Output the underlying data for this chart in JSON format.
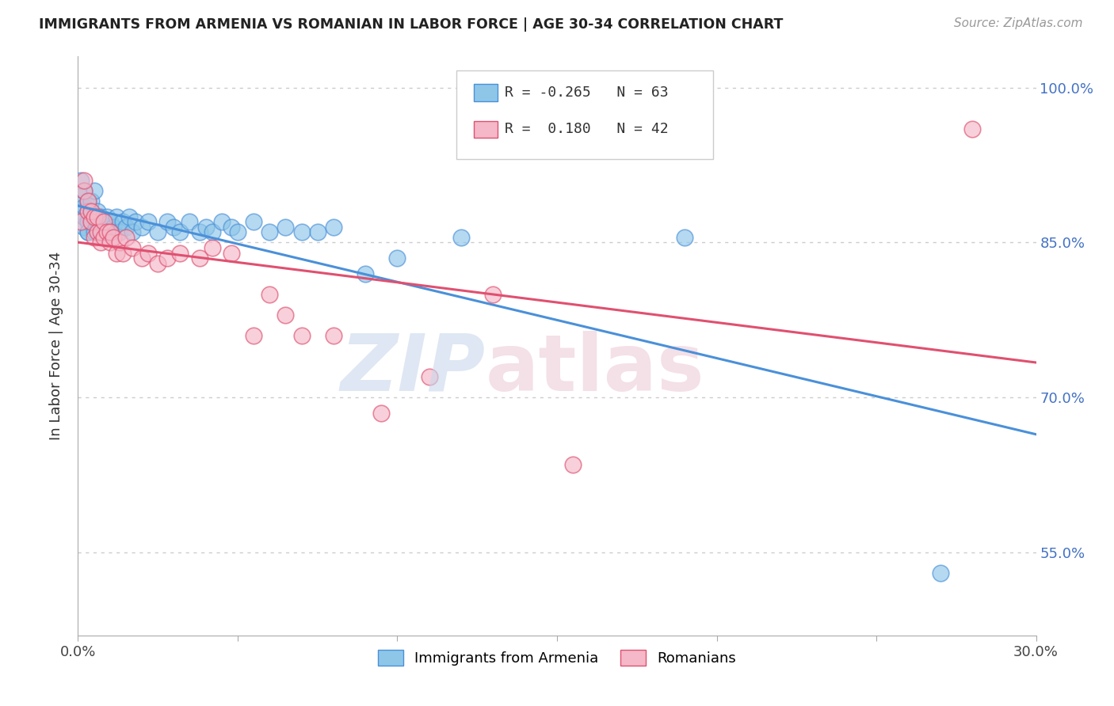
{
  "title": "IMMIGRANTS FROM ARMENIA VS ROMANIAN IN LABOR FORCE | AGE 30-34 CORRELATION CHART",
  "source": "Source: ZipAtlas.com",
  "ylabel": "In Labor Force | Age 30-34",
  "xlim": [
    0.0,
    0.3
  ],
  "ylim": [
    0.47,
    1.03
  ],
  "xticks": [
    0.0,
    0.05,
    0.1,
    0.15,
    0.2,
    0.25,
    0.3
  ],
  "xticklabels": [
    "0.0%",
    "",
    "",
    "",
    "",
    "",
    "30.0%"
  ],
  "yticks": [
    0.55,
    0.7,
    0.85,
    1.0
  ],
  "yticklabels": [
    "55.0%",
    "70.0%",
    "85.0%",
    "100.0%"
  ],
  "legend_labels": [
    "Immigrants from Armenia",
    "Romanians"
  ],
  "blue_color": "#8ec6e8",
  "pink_color": "#f4b8c8",
  "blue_line_color": "#4a90d9",
  "pink_line_color": "#e05070",
  "r_blue": -0.265,
  "n_blue": 63,
  "r_pink": 0.18,
  "n_pink": 42,
  "blue_scatter_x": [
    0.001,
    0.001,
    0.001,
    0.002,
    0.002,
    0.002,
    0.002,
    0.003,
    0.003,
    0.003,
    0.003,
    0.003,
    0.004,
    0.004,
    0.004,
    0.004,
    0.005,
    0.005,
    0.005,
    0.005,
    0.006,
    0.006,
    0.006,
    0.007,
    0.007,
    0.008,
    0.008,
    0.009,
    0.009,
    0.01,
    0.01,
    0.011,
    0.012,
    0.013,
    0.014,
    0.015,
    0.016,
    0.017,
    0.018,
    0.02,
    0.022,
    0.025,
    0.028,
    0.03,
    0.032,
    0.035,
    0.038,
    0.04,
    0.042,
    0.045,
    0.048,
    0.05,
    0.055,
    0.06,
    0.065,
    0.07,
    0.075,
    0.08,
    0.09,
    0.1,
    0.12,
    0.19,
    0.27
  ],
  "blue_scatter_y": [
    0.88,
    0.895,
    0.91,
    0.865,
    0.875,
    0.885,
    0.9,
    0.86,
    0.87,
    0.88,
    0.89,
    0.86,
    0.87,
    0.875,
    0.88,
    0.89,
    0.86,
    0.87,
    0.875,
    0.9,
    0.86,
    0.87,
    0.88,
    0.865,
    0.875,
    0.86,
    0.87,
    0.865,
    0.875,
    0.86,
    0.87,
    0.865,
    0.875,
    0.86,
    0.87,
    0.865,
    0.875,
    0.86,
    0.87,
    0.865,
    0.87,
    0.86,
    0.87,
    0.865,
    0.86,
    0.87,
    0.86,
    0.865,
    0.86,
    0.87,
    0.865,
    0.86,
    0.87,
    0.86,
    0.865,
    0.86,
    0.86,
    0.865,
    0.82,
    0.835,
    0.855,
    0.855,
    0.53
  ],
  "pink_scatter_x": [
    0.001,
    0.002,
    0.002,
    0.003,
    0.003,
    0.004,
    0.004,
    0.005,
    0.005,
    0.006,
    0.006,
    0.007,
    0.007,
    0.008,
    0.008,
    0.009,
    0.01,
    0.01,
    0.011,
    0.012,
    0.013,
    0.014,
    0.015,
    0.017,
    0.02,
    0.022,
    0.025,
    0.028,
    0.032,
    0.038,
    0.042,
    0.048,
    0.055,
    0.06,
    0.065,
    0.07,
    0.08,
    0.095,
    0.11,
    0.13,
    0.155,
    0.28
  ],
  "pink_scatter_y": [
    0.87,
    0.9,
    0.91,
    0.88,
    0.89,
    0.87,
    0.88,
    0.855,
    0.875,
    0.86,
    0.875,
    0.85,
    0.86,
    0.855,
    0.87,
    0.86,
    0.85,
    0.86,
    0.855,
    0.84,
    0.85,
    0.84,
    0.855,
    0.845,
    0.835,
    0.84,
    0.83,
    0.835,
    0.84,
    0.835,
    0.845,
    0.84,
    0.76,
    0.8,
    0.78,
    0.76,
    0.76,
    0.685,
    0.72,
    0.8,
    0.635,
    0.96
  ]
}
